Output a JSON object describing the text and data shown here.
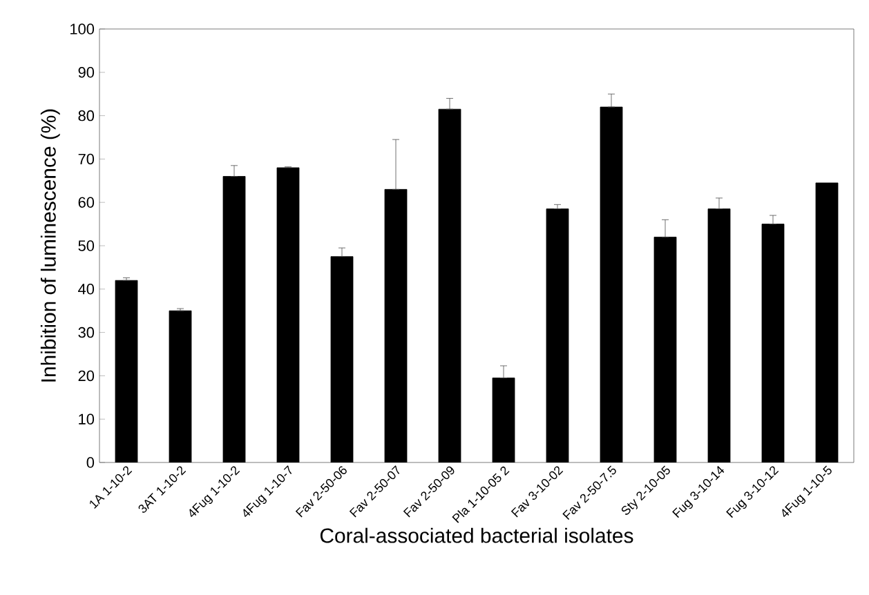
{
  "chart_data": {
    "type": "bar",
    "xlabel": "Coral-associated bacterial isolates",
    "ylabel": "Inhibition of luminescence (%)",
    "categories": [
      "1A 1-10-2",
      "3AT 1-10-2",
      "4Fug 1-10-2",
      "4Fug 1-10-7",
      "Fav 2-50-06",
      "Fav 2-50-07",
      "Fav 2-50-09",
      "Pla 1-10-05 2",
      "Fav 3-10-02",
      "Fav 2-50-7.5",
      "Sty 2-10-05",
      "Fug 3-10-14",
      "Fug 3-10-12",
      "4Fug 1-10-5"
    ],
    "values": [
      42,
      35,
      66,
      68,
      47.5,
      63,
      81.5,
      19.5,
      58.5,
      82,
      52,
      58.5,
      55,
      64.5
    ],
    "errors": [
      [
        42,
        42.6
      ],
      [
        35,
        35.5
      ],
      [
        66,
        68.5
      ],
      [
        68,
        68.2
      ],
      [
        47.5,
        49.5
      ],
      [
        63,
        74.5
      ],
      [
        81.5,
        84
      ],
      [
        19.5,
        22.3
      ],
      [
        58.5,
        59.5
      ],
      [
        82,
        85
      ],
      [
        52,
        56
      ],
      [
        58.5,
        61
      ],
      [
        55,
        57
      ],
      null
    ],
    "color": "#000000",
    "ylim": [
      0,
      100
    ],
    "yticks": [
      0,
      10,
      20,
      30,
      40,
      50,
      60,
      70,
      80,
      90,
      100
    ],
    "grid": false
  }
}
